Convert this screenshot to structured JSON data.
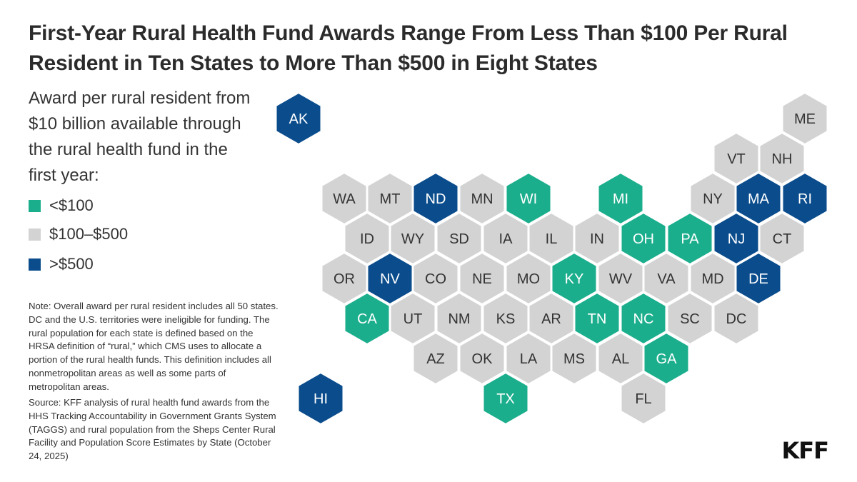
{
  "title": "First-Year Rural Health Fund Awards Range From Less Than $100 Per Rural Resident in Ten States to More Than $500 in Eight States",
  "legend": {
    "title": "Award per rural resident from $10 billion available through the rural health fund in the first year:",
    "items": [
      {
        "key": "low",
        "label": "<$100",
        "color": "#1BAE8C"
      },
      {
        "key": "mid",
        "label": "$100–$500",
        "color": "#D3D3D3"
      },
      {
        "key": "high",
        "label": ">$500",
        "color": "#0A4C8C"
      }
    ]
  },
  "note": "Note: Overall award per rural resident includes all 50 states. DC and the U.S. territories were ineligible for funding. The rural population for each state is defined based on the HRSA definition of “rural,” which CMS uses to allocate a portion of the rural health funds. This definition includes all nonmetropolitan areas as well as some parts of metropolitan areas.",
  "source": "Source: KFF analysis of rural health fund awards from the HHS Tracking Accountability in Government Grants System (TAGGS) and rural population from the Sheps Center Rural Facility and Population Score Estimates by State (October 24, 2025)",
  "logo": "KFF",
  "states": [
    {
      "abbr": "AK",
      "category": "high"
    },
    {
      "abbr": "ME",
      "category": "mid"
    },
    {
      "abbr": "VT",
      "category": "mid"
    },
    {
      "abbr": "NH",
      "category": "mid"
    },
    {
      "abbr": "WA",
      "category": "mid"
    },
    {
      "abbr": "MT",
      "category": "mid"
    },
    {
      "abbr": "ND",
      "category": "high"
    },
    {
      "abbr": "MN",
      "category": "mid"
    },
    {
      "abbr": "WI",
      "category": "low"
    },
    {
      "abbr": "MI",
      "category": "low"
    },
    {
      "abbr": "NY",
      "category": "mid"
    },
    {
      "abbr": "MA",
      "category": "high"
    },
    {
      "abbr": "RI",
      "category": "high"
    },
    {
      "abbr": "ID",
      "category": "mid"
    },
    {
      "abbr": "WY",
      "category": "mid"
    },
    {
      "abbr": "SD",
      "category": "mid"
    },
    {
      "abbr": "IA",
      "category": "mid"
    },
    {
      "abbr": "IL",
      "category": "mid"
    },
    {
      "abbr": "IN",
      "category": "mid"
    },
    {
      "abbr": "OH",
      "category": "low"
    },
    {
      "abbr": "PA",
      "category": "low"
    },
    {
      "abbr": "NJ",
      "category": "high"
    },
    {
      "abbr": "CT",
      "category": "mid"
    },
    {
      "abbr": "OR",
      "category": "mid"
    },
    {
      "abbr": "NV",
      "category": "high"
    },
    {
      "abbr": "CO",
      "category": "mid"
    },
    {
      "abbr": "NE",
      "category": "mid"
    },
    {
      "abbr": "MO",
      "category": "mid"
    },
    {
      "abbr": "KY",
      "category": "low"
    },
    {
      "abbr": "WV",
      "category": "mid"
    },
    {
      "abbr": "VA",
      "category": "mid"
    },
    {
      "abbr": "MD",
      "category": "mid"
    },
    {
      "abbr": "DE",
      "category": "high"
    },
    {
      "abbr": "CA",
      "category": "low"
    },
    {
      "abbr": "UT",
      "category": "mid"
    },
    {
      "abbr": "NM",
      "category": "mid"
    },
    {
      "abbr": "KS",
      "category": "mid"
    },
    {
      "abbr": "AR",
      "category": "mid"
    },
    {
      "abbr": "TN",
      "category": "low"
    },
    {
      "abbr": "NC",
      "category": "low"
    },
    {
      "abbr": "SC",
      "category": "mid"
    },
    {
      "abbr": "DC",
      "category": "mid"
    },
    {
      "abbr": "AZ",
      "category": "mid"
    },
    {
      "abbr": "OK",
      "category": "mid"
    },
    {
      "abbr": "LA",
      "category": "mid"
    },
    {
      "abbr": "MS",
      "category": "mid"
    },
    {
      "abbr": "AL",
      "category": "mid"
    },
    {
      "abbr": "GA",
      "category": "low"
    },
    {
      "abbr": "HI",
      "category": "high"
    },
    {
      "abbr": "TX",
      "category": "low"
    },
    {
      "abbr": "FL",
      "category": "mid"
    }
  ]
}
